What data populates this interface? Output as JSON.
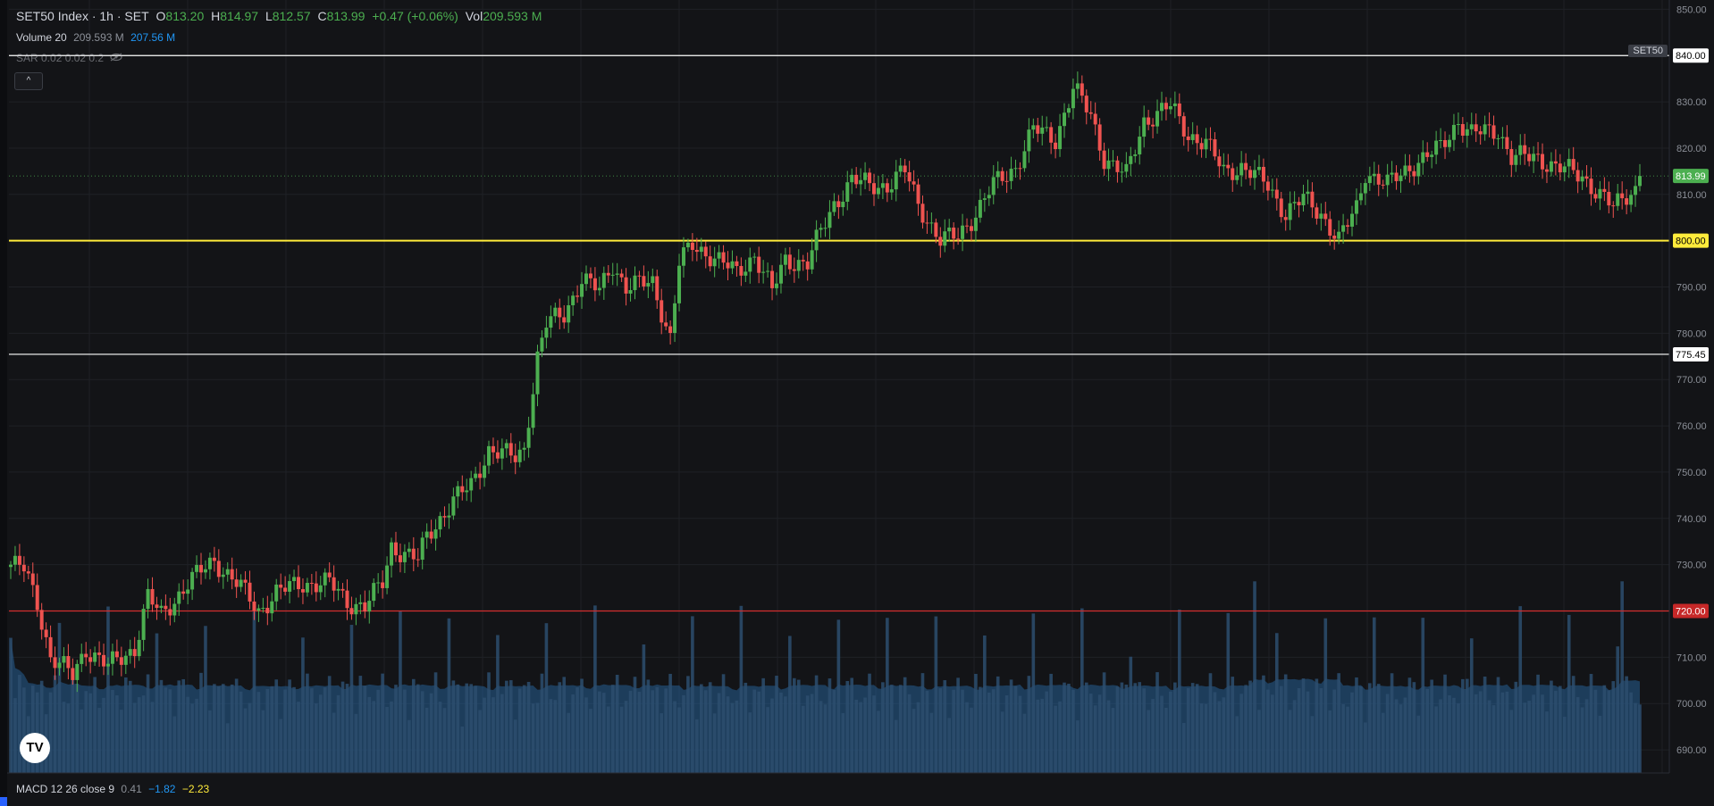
{
  "header": {
    "symbol": "SET50 Index · 1h · SET",
    "open_label": "O",
    "open": "813.20",
    "high_label": "H",
    "high": "814.97",
    "low_label": "L",
    "low": "812.57",
    "close_label": "C",
    "close": "813.99",
    "change": "+0.47 (+0.06%)",
    "vol_label": "Vol",
    "vol": "209.593 M"
  },
  "volume_legend": {
    "name": "Volume 20",
    "value": "209.593 M",
    "ma": "207.56 M"
  },
  "sar_legend": {
    "name": "SAR 0.02 0.02 0.2"
  },
  "macd_legend": {
    "name": "MACD 12 26 close 9",
    "v1": "0.41",
    "v2": "−1.82",
    "v3": "−2.23"
  },
  "symbol_badge": "SET50",
  "colors": {
    "background": "#131417",
    "up": "#4caf50",
    "down": "#ef5350",
    "volume": "#2d4d6e",
    "volume_ma": "#2a6fb0",
    "line_white": "#ffffff",
    "line_yellow": "#ffeb3b",
    "line_red": "#d32f2f",
    "price_tag": "#4caf50"
  },
  "icons": {
    "collapse": "chevron-up-icon",
    "visibility": "eye-off-icon",
    "logo": "tradingview-logo"
  },
  "logo_text": "TV",
  "chart_data": {
    "type": "candlestick",
    "y_axis": {
      "min": 685,
      "max": 852,
      "ticks": [
        "850.00",
        "830.00",
        "820.00",
        "810.00",
        "790.00",
        "780.00",
        "770.00",
        "760.00",
        "750.00",
        "740.00",
        "730.00",
        "710.00",
        "700.00",
        "690.00"
      ]
    },
    "horizontal_lines": [
      {
        "value": 840.0,
        "label": "840.00",
        "color": "#ffffff"
      },
      {
        "value": 800.0,
        "label": "800.00",
        "color": "#ffeb3b"
      },
      {
        "value": 775.45,
        "label": "775.45",
        "color": "#ffffff"
      },
      {
        "value": 720.0,
        "label": "720.00",
        "color": "#d32f2f"
      }
    ],
    "last_price": {
      "value": 813.99,
      "label": "813.99"
    },
    "anchors": [
      [
        0,
        730
      ],
      [
        3,
        729
      ],
      [
        6,
        722
      ],
      [
        9,
        710
      ],
      [
        14,
        706
      ],
      [
        17,
        712
      ],
      [
        22,
        708
      ],
      [
        28,
        712
      ],
      [
        31,
        723
      ],
      [
        34,
        719
      ],
      [
        40,
        726
      ],
      [
        46,
        731
      ],
      [
        52,
        725
      ],
      [
        56,
        720
      ],
      [
        60,
        724
      ],
      [
        66,
        726
      ],
      [
        72,
        726
      ],
      [
        76,
        722
      ],
      [
        80,
        721
      ],
      [
        84,
        726
      ],
      [
        86,
        734
      ],
      [
        92,
        731
      ],
      [
        94,
        736
      ],
      [
        100,
        744
      ],
      [
        104,
        747
      ],
      [
        108,
        755
      ],
      [
        114,
        753
      ],
      [
        116,
        755
      ],
      [
        117,
        762
      ],
      [
        119,
        775
      ],
      [
        121,
        782
      ],
      [
        125,
        784
      ],
      [
        129,
        792
      ],
      [
        133,
        789
      ],
      [
        136,
        795
      ],
      [
        139,
        790
      ],
      [
        145,
        791
      ],
      [
        149,
        779
      ],
      [
        151,
        795
      ],
      [
        154,
        799
      ],
      [
        158,
        797
      ],
      [
        164,
        793
      ],
      [
        168,
        797
      ],
      [
        172,
        789
      ],
      [
        175,
        796
      ],
      [
        180,
        795
      ],
      [
        183,
        802
      ],
      [
        186,
        808
      ],
      [
        190,
        813
      ],
      [
        194,
        812
      ],
      [
        198,
        812
      ],
      [
        202,
        815
      ],
      [
        205,
        808
      ],
      [
        210,
        800
      ],
      [
        214,
        801
      ],
      [
        218,
        806
      ],
      [
        222,
        812
      ],
      [
        227,
        816
      ],
      [
        231,
        824
      ],
      [
        236,
        822
      ],
      [
        240,
        833
      ],
      [
        244,
        827
      ],
      [
        247,
        818
      ],
      [
        252,
        814
      ],
      [
        256,
        826
      ],
      [
        262,
        829
      ],
      [
        266,
        823
      ],
      [
        270,
        821
      ],
      [
        274,
        815
      ],
      [
        278,
        816
      ],
      [
        284,
        812
      ],
      [
        288,
        806
      ],
      [
        292,
        809
      ],
      [
        296,
        806
      ],
      [
        300,
        800
      ],
      [
        304,
        807
      ],
      [
        306,
        815
      ],
      [
        311,
        812
      ],
      [
        316,
        816
      ],
      [
        323,
        820
      ],
      [
        327,
        826
      ],
      [
        330,
        823
      ],
      [
        336,
        824
      ],
      [
        339,
        818
      ],
      [
        345,
        818
      ],
      [
        349,
        816
      ],
      [
        355,
        814
      ],
      [
        359,
        810
      ],
      [
        362,
        807
      ],
      [
        365,
        810
      ],
      [
        368,
        812
      ]
    ],
    "volume": {
      "min": 0,
      "max": 100,
      "description": "Per-bar volume histogram with 20-period moving average area"
    }
  }
}
